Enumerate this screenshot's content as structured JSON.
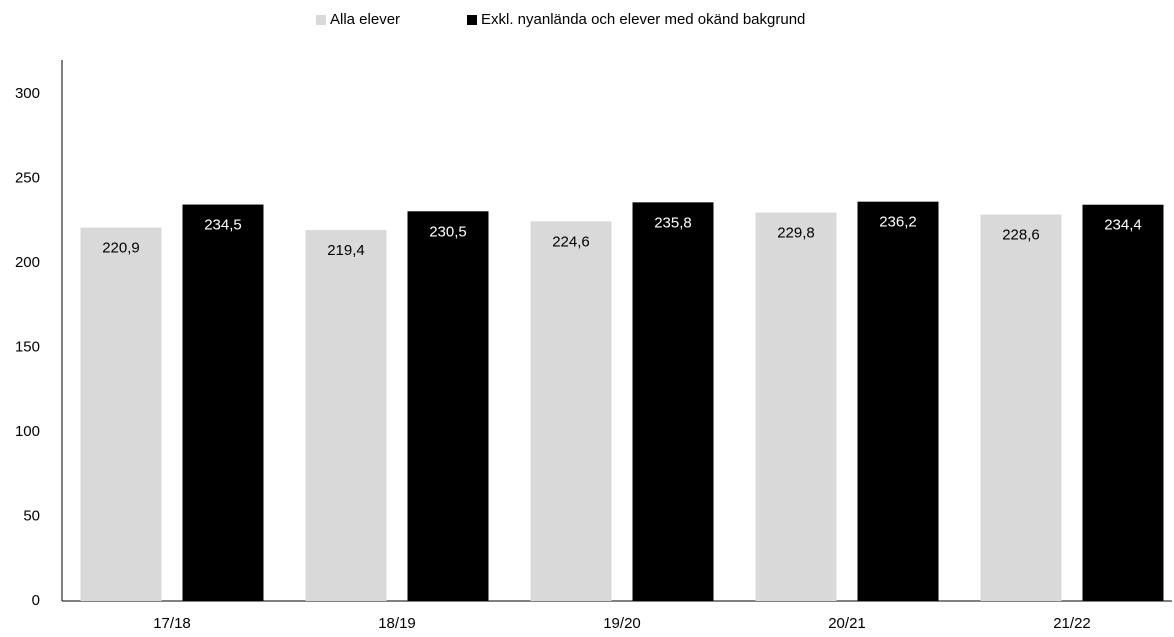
{
  "chart_data": {
    "type": "bar",
    "categories": [
      "17/18",
      "18/19",
      "19/20",
      "20/21",
      "21/22"
    ],
    "series": [
      {
        "name": "Alla elever",
        "color": "#d9d9d9",
        "values": [
          220.9,
          219.4,
          224.6,
          229.8,
          228.6
        ],
        "value_labels": [
          "220,9",
          "219,4",
          "224,6",
          "229,8",
          "228,6"
        ]
      },
      {
        "name": "Exkl. nyanlända och elever med okänd bakgrund",
        "color": "#000000",
        "values": [
          234.5,
          230.5,
          235.8,
          236.2,
          234.4
        ],
        "value_labels": [
          "234,5",
          "230,5",
          "235,8",
          "236,2",
          "234,4"
        ]
      }
    ],
    "ylim": [
      0,
      320
    ],
    "yticks": [
      0,
      50,
      100,
      150,
      200,
      250,
      300
    ],
    "grid": false,
    "legend": "top"
  }
}
